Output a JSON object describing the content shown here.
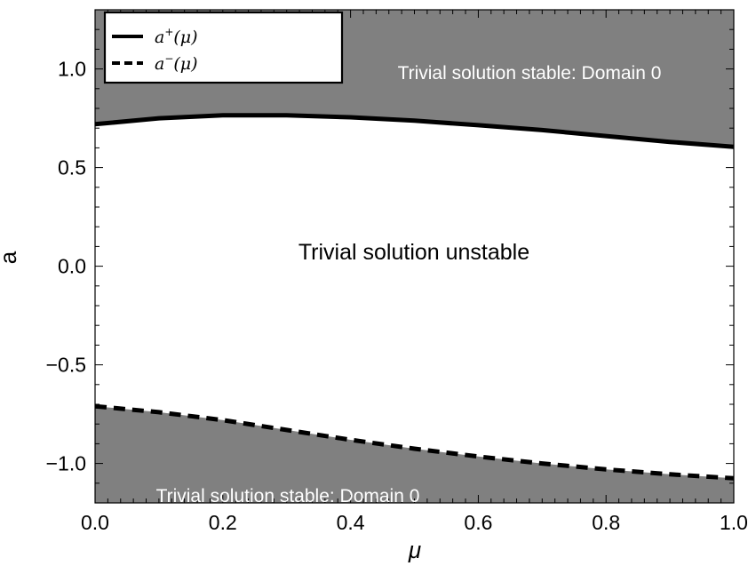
{
  "chart_data": {
    "type": "line",
    "xlabel": "μ",
    "ylabel": "a",
    "xlim": [
      0,
      1
    ],
    "ylim": [
      -1.2,
      1.3
    ],
    "x_ticks": [
      "0.0",
      "0.2",
      "0.4",
      "0.6",
      "0.8",
      "1.0"
    ],
    "y_ticks": [
      "−1.0",
      "−0.5",
      "0.0",
      "0.5",
      "1.0"
    ],
    "series": [
      {
        "name": "a⁺(μ)",
        "style": "solid",
        "x": [
          0.0,
          0.1,
          0.2,
          0.3,
          0.4,
          0.5,
          0.6,
          0.7,
          0.8,
          0.9,
          1.0
        ],
        "y": [
          0.72,
          0.75,
          0.765,
          0.765,
          0.755,
          0.738,
          0.715,
          0.69,
          0.66,
          0.63,
          0.605
        ]
      },
      {
        "name": "a⁻(μ)",
        "style": "dashed",
        "x": [
          0.0,
          0.1,
          0.2,
          0.3,
          0.4,
          0.5,
          0.6,
          0.7,
          0.8,
          0.9,
          1.0
        ],
        "y": [
          -0.71,
          -0.74,
          -0.78,
          -0.83,
          -0.88,
          -0.925,
          -0.965,
          -1.0,
          -1.03,
          -1.055,
          -1.075
        ]
      }
    ],
    "regions": [
      {
        "label": "Trivial solution stable: Domain 0",
        "side": "above-upper",
        "color": "#808080"
      },
      {
        "label": "Trivial solution stable: Domain 0",
        "side": "below-lower",
        "color": "#808080"
      },
      {
        "label": "Trivial solution unstable",
        "side": "between",
        "color": "#ffffff"
      }
    ],
    "legend": {
      "position": "top-left",
      "entries": [
        {
          "base": "a",
          "sup": "+",
          "arg": "(μ)",
          "style": "solid"
        },
        {
          "base": "a",
          "sup": "−",
          "arg": "(μ)",
          "style": "dashed"
        }
      ]
    },
    "grid": false
  }
}
